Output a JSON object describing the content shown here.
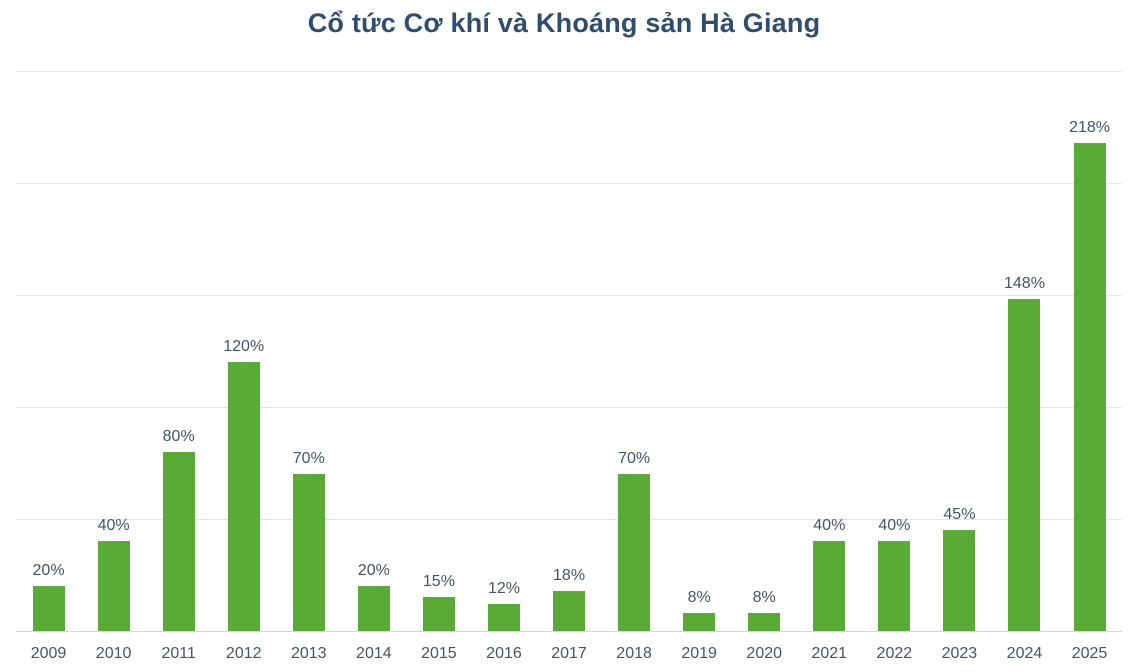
{
  "chart_data": {
    "type": "bar",
    "title": "Cổ tức Cơ khí và Khoáng sản Hà Giang",
    "categories": [
      "2009",
      "2010",
      "2011",
      "2012",
      "2013",
      "2014",
      "2015",
      "2016",
      "2017",
      "2018",
      "2019",
      "2020",
      "2021",
      "2022",
      "2023",
      "2024",
      "2025"
    ],
    "values": [
      20,
      40,
      80,
      120,
      70,
      20,
      15,
      12,
      18,
      70,
      8,
      8,
      40,
      40,
      45,
      148,
      218
    ],
    "unit": "%",
    "xlabel": "",
    "ylabel": "",
    "ylim": [
      0,
      250
    ],
    "grid_step": 50,
    "grid": true,
    "legend_position": "none",
    "y_tick_labels_visible": false,
    "colors": {
      "bar": "#5aaa37",
      "title": "#2e4d6f",
      "labels": "#44546a",
      "gridline": "#e2e4e7",
      "axis_line": "#d3d7db",
      "background": "#ffffff"
    }
  }
}
